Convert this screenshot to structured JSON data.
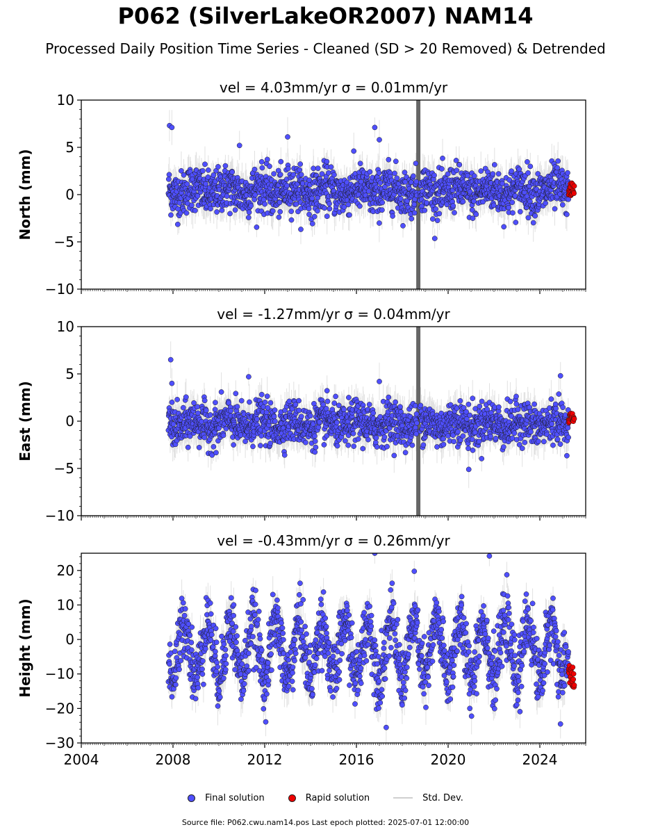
{
  "figure": {
    "title": "P062 (SilverLakeOR2007) NAM14",
    "subtitle": "Processed Daily Position Time Series - Cleaned (SD > 20 Removed) & Detrended",
    "footer": "Source file: P062.cwu.nam14.pos  Last epoch plotted: 2025-07-01 12:00:00"
  },
  "legend": {
    "final_label": "Final solution",
    "rapid_label": "Rapid solution",
    "std_label": "Std. Dev."
  },
  "colors": {
    "final": "#4f4fff",
    "rapid": "#ee0000",
    "std": "#c8c8c8",
    "outline": "#1a1a1a"
  },
  "chart_data": [
    {
      "type": "scatter",
      "component": "north",
      "title": "vel = 4.03mm/yr   σ = 0.01mm/yr",
      "ylabel": "North (mm)",
      "xlim": [
        2004,
        2026
      ],
      "ylim": [
        -10,
        10
      ],
      "yticks": [
        -10,
        -5,
        0,
        5,
        10
      ],
      "xticks": [
        2004,
        2008,
        2012,
        2016,
        2020,
        2024
      ],
      "xtick_labels_shown": false,
      "series": [
        {
          "name": "Final solution",
          "x_range": [
            2007.8,
            2025.25
          ],
          "approx_center": 0.4,
          "approx_spread": 1.2,
          "notable_points": [
            [
              2007.85,
              7.3
            ],
            [
              2007.95,
              7.1
            ],
            [
              2010.9,
              5.2
            ],
            [
              2013.0,
              6.1
            ],
            [
              2016.8,
              7.1
            ],
            [
              2017.0,
              5.8
            ]
          ]
        },
        {
          "name": "Rapid solution",
          "x_range": [
            2025.25,
            2025.5
          ],
          "approx_center": 0.6,
          "approx_spread": 0.7
        }
      ],
      "std_dev_band": {
        "typical_halfwidth": 1.5,
        "gap_spike_x": 2018.7
      }
    },
    {
      "type": "scatter",
      "component": "east",
      "title": "vel = -1.27mm/yr   σ = 0.04mm/yr",
      "ylabel": "East (mm)",
      "xlim": [
        2004,
        2026
      ],
      "ylim": [
        -10,
        10
      ],
      "yticks": [
        -10,
        -5,
        0,
        5,
        10
      ],
      "xticks": [
        2004,
        2008,
        2012,
        2016,
        2020,
        2024
      ],
      "xtick_labels_shown": false,
      "series": [
        {
          "name": "Final solution",
          "x_range": [
            2007.8,
            2025.25
          ],
          "approx_center": -0.3,
          "approx_spread": 1.1,
          "notable_points": [
            [
              2007.9,
              6.5
            ],
            [
              2007.95,
              4.0
            ],
            [
              2011.3,
              4.7
            ],
            [
              2017.0,
              4.2
            ],
            [
              2020.9,
              -5.1
            ],
            [
              2024.9,
              4.8
            ]
          ]
        },
        {
          "name": "Rapid solution",
          "x_range": [
            2025.25,
            2025.5
          ],
          "approx_center": 0.3,
          "approx_spread": 0.6
        }
      ],
      "std_dev_band": {
        "typical_halfwidth": 1.5,
        "gap_spike_x": 2018.7
      }
    },
    {
      "type": "scatter",
      "component": "height",
      "title": "vel = -0.43mm/yr   σ = 0.26mm/yr",
      "ylabel": "Height (mm)",
      "xlim": [
        2004,
        2026
      ],
      "ylim": [
        -30,
        25
      ],
      "yticks": [
        -30,
        -20,
        -10,
        0,
        10,
        20
      ],
      "xticks": [
        2004,
        2008,
        2012,
        2016,
        2020,
        2024
      ],
      "xtick_labels": [
        "2004",
        "2008",
        "2012",
        "2016",
        "2020",
        "2024"
      ],
      "xtick_labels_shown": true,
      "series": [
        {
          "name": "Final solution",
          "x_range": [
            2007.8,
            2025.25
          ],
          "seasonal_amplitude": 8,
          "approx_spread": 4.5,
          "notable_points": [
            [
              2016.8,
              25.0
            ],
            [
              2021.8,
              24.2
            ],
            [
              2017.3,
              -25.5
            ],
            [
              2024.9,
              -24.5
            ]
          ]
        },
        {
          "name": "Rapid solution",
          "x_range": [
            2025.25,
            2025.5
          ],
          "approx_center": -11,
          "approx_spread": 3.5
        }
      ],
      "std_dev_band": {
        "typical_halfwidth": 4
      }
    }
  ]
}
